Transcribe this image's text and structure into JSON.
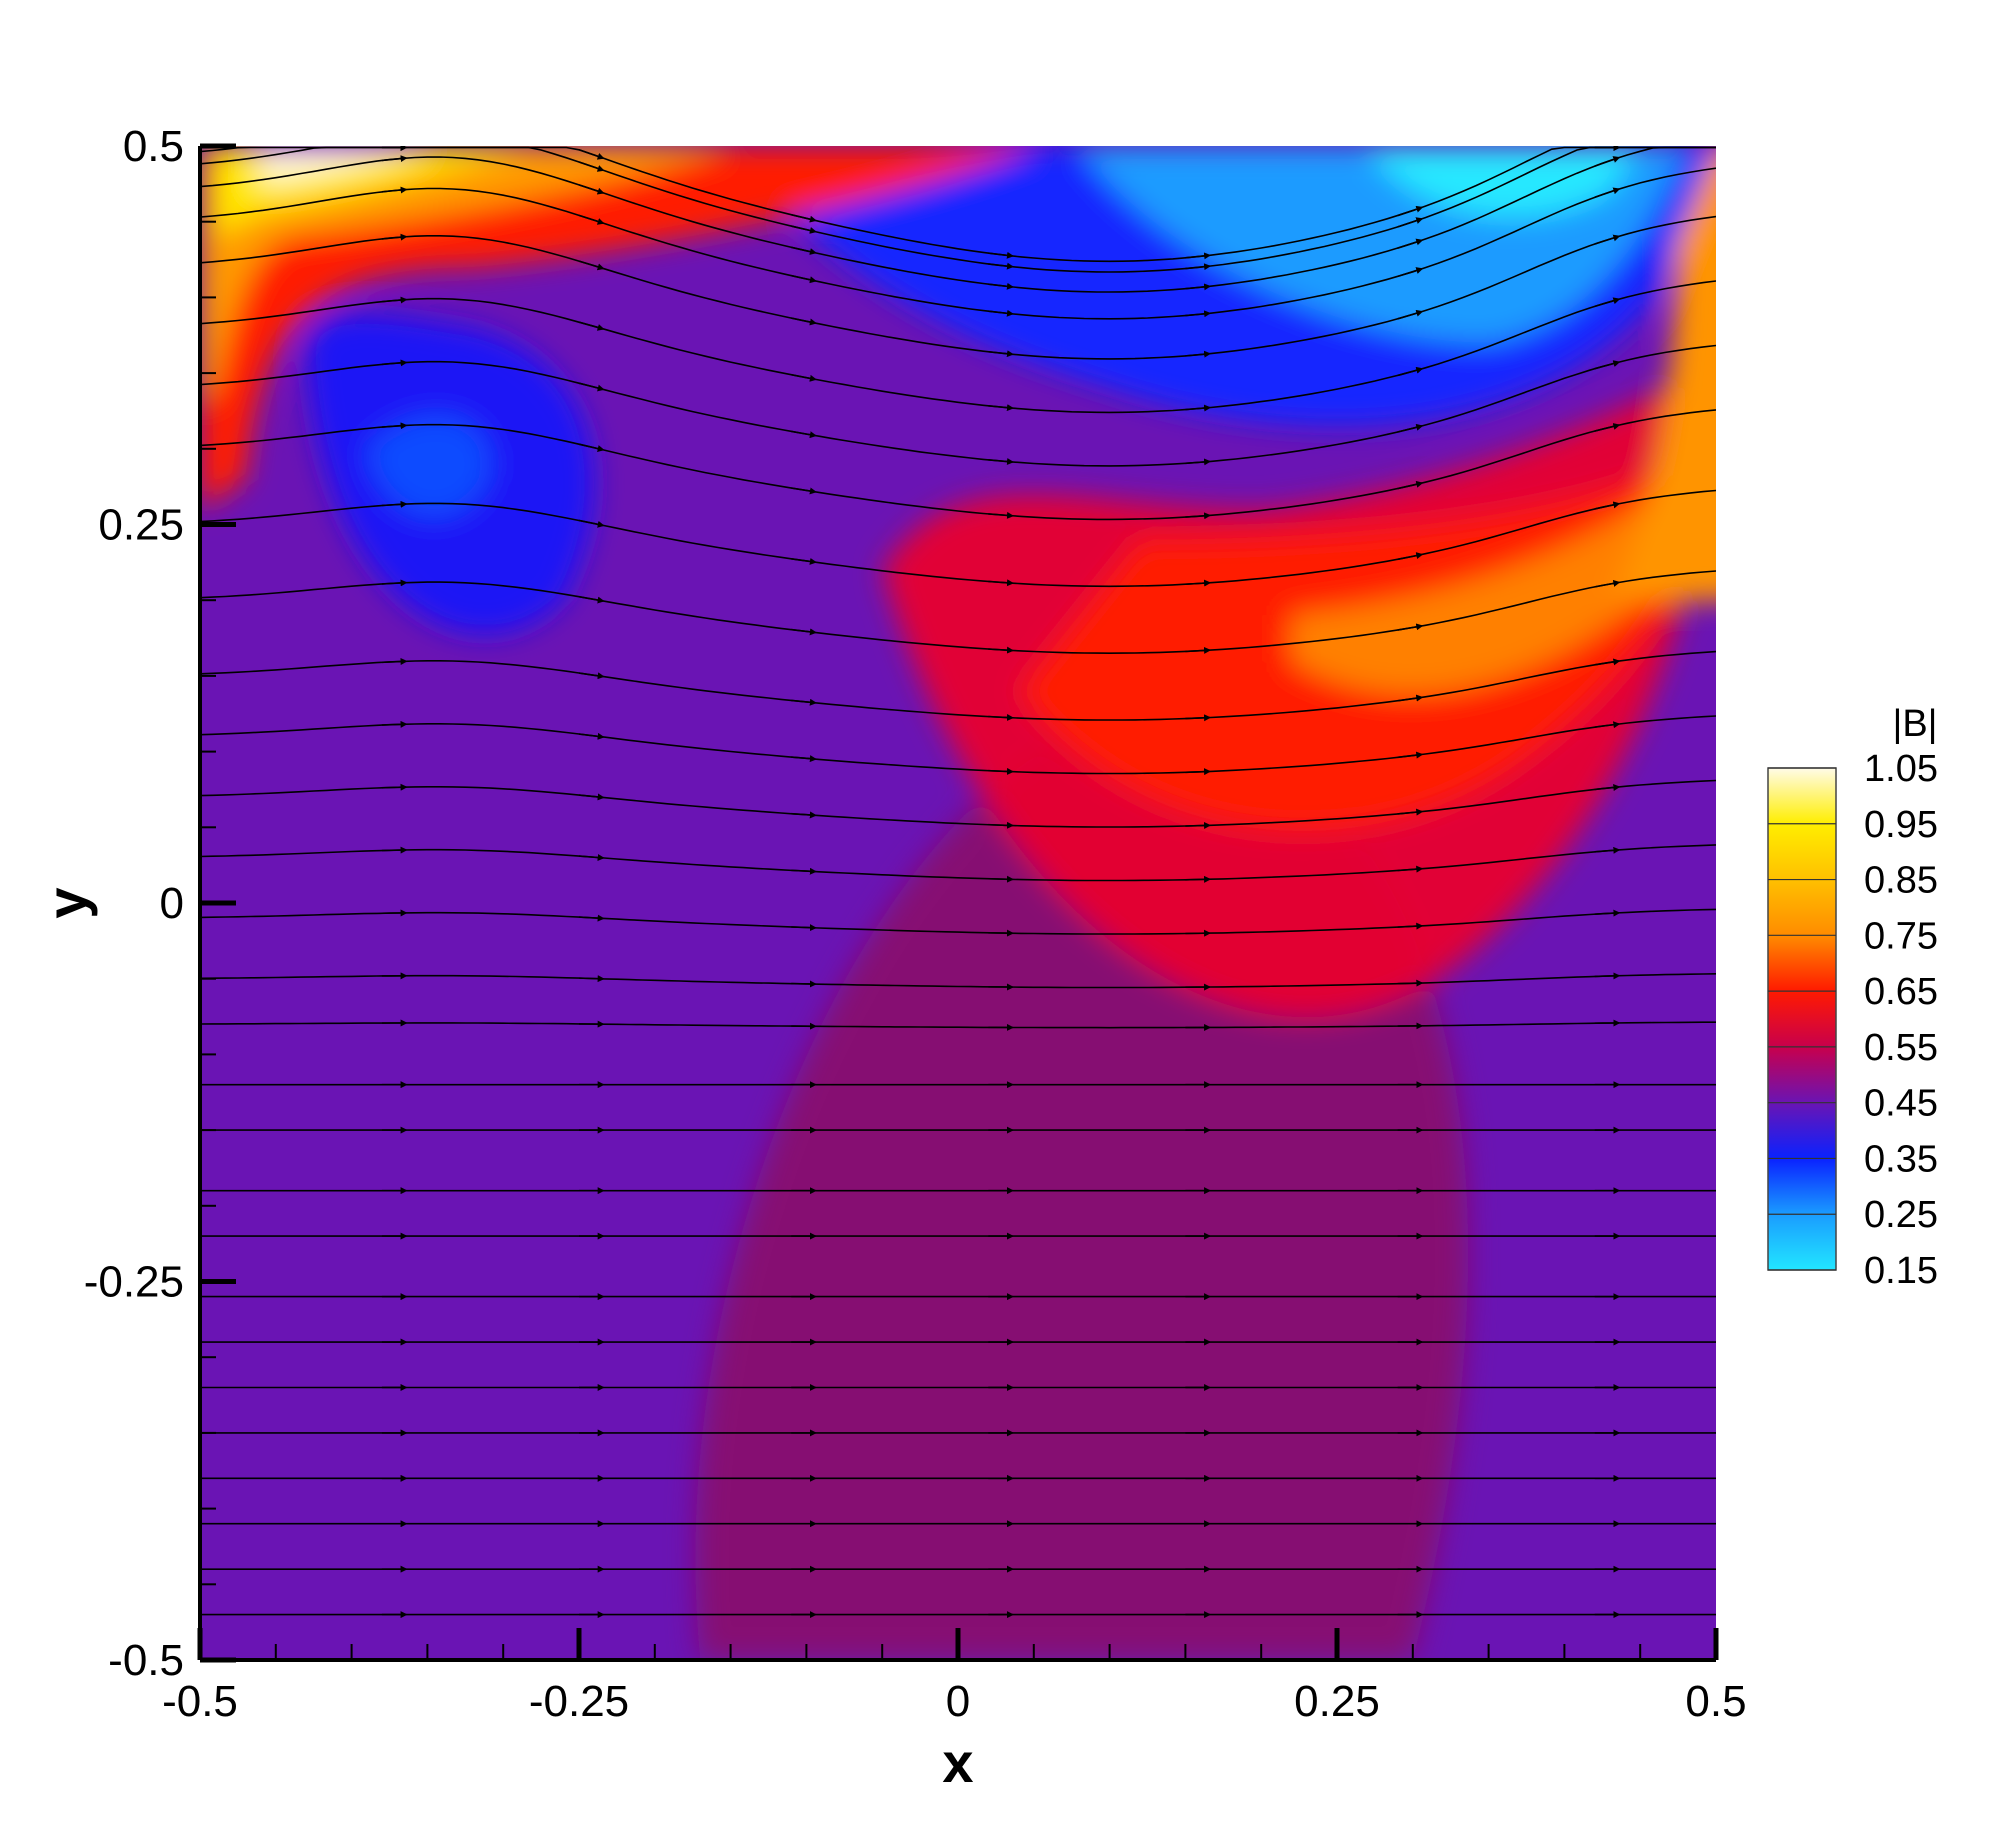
{
  "chart_data": {
    "type": "heatmap",
    "title": "",
    "xlabel": "x",
    "ylabel": "y",
    "xlim": [
      -0.5,
      0.5
    ],
    "ylim": [
      -0.5,
      0.5
    ],
    "x_ticks": [
      -0.5,
      -0.25,
      0,
      0.25,
      0.5
    ],
    "y_ticks": [
      -0.5,
      -0.25,
      0,
      0.25,
      0.5
    ],
    "x_tick_labels": [
      "-0.5",
      "-0.25",
      "0",
      "0.25",
      "0.5"
    ],
    "y_tick_labels": [
      "-0.5",
      "-0.25",
      "0",
      "0.25",
      "0.5"
    ],
    "colorbar": {
      "title": "|B|",
      "levels": [
        1.05,
        0.95,
        0.85,
        0.75,
        0.65,
        0.55,
        0.45,
        0.35,
        0.25,
        0.15
      ],
      "level_labels": [
        "1.05",
        "0.95",
        "0.85",
        "0.75",
        "0.65",
        "0.55",
        "0.45",
        "0.35",
        "0.25",
        "0.15"
      ],
      "colors": [
        "#fffbe8",
        "#ffee00",
        "#ffc000",
        "#ff8c00",
        "#ff1a00",
        "#c8004c",
        "#6a14b4",
        "#0a22ff",
        "#1a9cff",
        "#22e6ff"
      ]
    },
    "field_features": [
      {
        "kind": "high",
        "x": -0.43,
        "y": 0.47,
        "value": 1.0
      },
      {
        "kind": "high",
        "x": 0.28,
        "y": 0.16,
        "value": 0.75
      },
      {
        "kind": "high",
        "x": 0.49,
        "y": 0.33,
        "value": 0.82
      },
      {
        "kind": "low",
        "x": -0.36,
        "y": 0.28,
        "value": 0.37
      },
      {
        "kind": "low",
        "x": 0.37,
        "y": 0.46,
        "value": 0.18
      },
      {
        "kind": "low",
        "x": 0.06,
        "y": 0.38,
        "value": 0.33
      }
    ],
    "background_value": 0.5,
    "streamlines": {
      "direction": "left-to-right",
      "start_y": [
        -0.47,
        -0.44,
        -0.41,
        -0.38,
        -0.35,
        -0.32,
        -0.29,
        -0.26,
        -0.22,
        -0.19,
        -0.15,
        -0.12,
        -0.08,
        -0.05,
        -0.01,
        0.03,
        0.07,
        0.11,
        0.15,
        0.2,
        0.25,
        0.3,
        0.34,
        0.38,
        0.42,
        0.45,
        0.47,
        0.485,
        0.493
      ],
      "arrow_x": [
        -0.37,
        -0.24,
        -0.1,
        0.03,
        0.16,
        0.3,
        0.43
      ]
    }
  }
}
